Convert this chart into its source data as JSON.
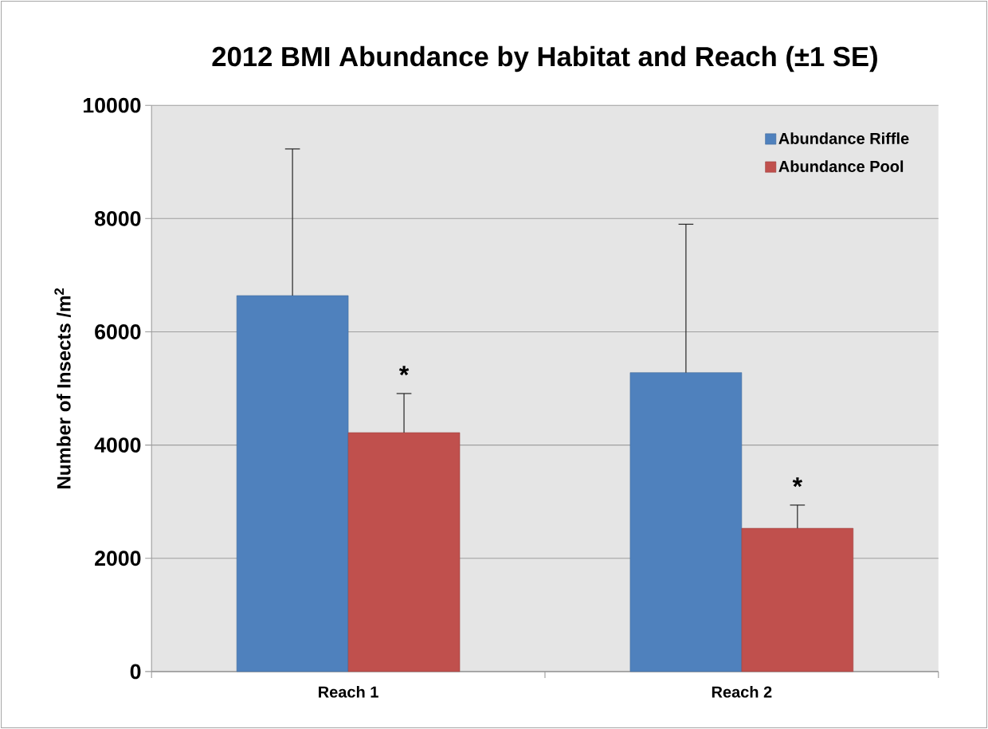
{
  "chart_data": {
    "type": "bar",
    "title": "2012 BMI Abundance by Habitat and Reach (±1 SE)",
    "ylabel": "Number of Insects /m$^{2}$",
    "categories": [
      "Reach 1",
      "Reach 2"
    ],
    "series": [
      {
        "name": "Abundance Riffle",
        "color": "#4f81bd",
        "values": [
          6640,
          5280
        ],
        "errors": [
          [
            6640,
            9230
          ],
          [
            5280,
            7900
          ]
        ]
      },
      {
        "name": "Abundance Pool",
        "color": "#c0504d",
        "values": [
          4220,
          2530
        ],
        "errors": [
          [
            4220,
            4910
          ],
          [
            2530,
            2940
          ]
        ]
      }
    ],
    "ylim": [
      0,
      10000
    ],
    "yticks": [
      0,
      2000,
      4000,
      6000,
      8000,
      10000
    ],
    "grid": "y",
    "legend": "top right",
    "annotations": [
      {
        "text": "*",
        "x": "Reach 1",
        "y": 4910
      },
      {
        "text": "*",
        "x": "Reach 2",
        "y": 2940
      }
    ]
  }
}
